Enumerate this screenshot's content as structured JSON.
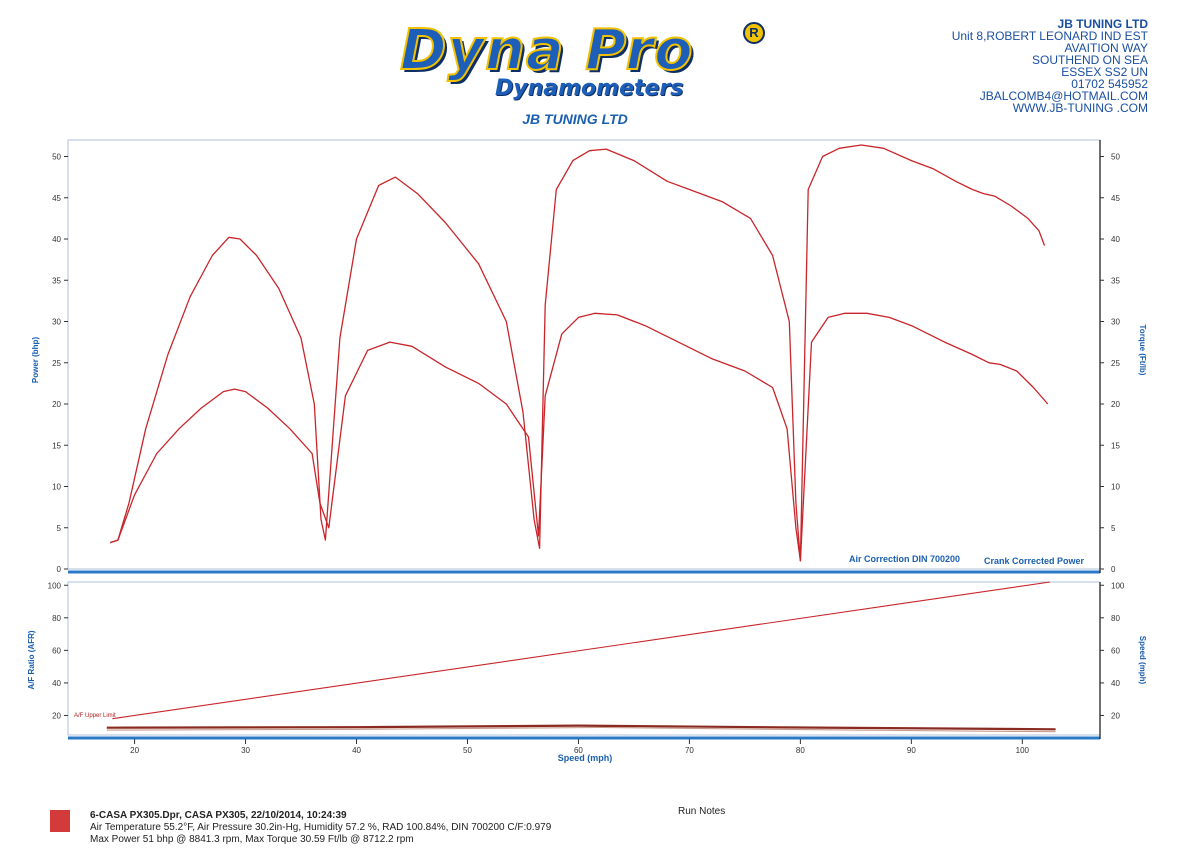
{
  "header": {
    "logo_main": "Dyna Pro",
    "logo_reg": "R",
    "logo_sub": "Dynamometers",
    "center_title": "JB TUNING LTD",
    "address": [
      "JB TUNING LTD",
      "Unit 8,ROBERT LEONARD IND EST",
      "AVAITION WAY",
      "SOUTHEND ON SEA",
      "ESSEX SS2 UN",
      "01702 545952",
      "JBALCOMB4@HOTMAIL.COM",
      "WWW.JB-TUNING .COM"
    ]
  },
  "chart_data": {
    "type": "line",
    "x_label": "Speed (mph)",
    "x_ticks": [
      20,
      30,
      40,
      50,
      60,
      70,
      80,
      90,
      100
    ],
    "xlim": [
      14,
      107
    ],
    "colors": {
      "curve": "#c8252a",
      "axis": "#2a78c8",
      "text": "#1a5fb0"
    },
    "top_panel": {
      "y_left_label": "Power (bhp)",
      "y_right_label": "Torque (Ft/lb)",
      "y_ticks": [
        0,
        5,
        10,
        15,
        20,
        25,
        30,
        35,
        40,
        45,
        50
      ],
      "ylim": [
        0,
        52
      ],
      "annotations": [
        "Air Correction DIN 700200",
        "Crank Corrected Power"
      ],
      "series": [
        {
          "curve": "a",
          "x": [
            17.8,
            18.5,
            19.5,
            21,
            23,
            25,
            27,
            28.5,
            29.5,
            31,
            33,
            35,
            36.2,
            36.8,
            37.2,
            38.5,
            40,
            42,
            43.5,
            45.5,
            48,
            51,
            53.5,
            55,
            56,
            56.5,
            57,
            58,
            59.5,
            61,
            62.5,
            65,
            68,
            70,
            73,
            75.5,
            77.5,
            79,
            79.6,
            80,
            80.7,
            82,
            83.5,
            85.5,
            87.5,
            90,
            92,
            94,
            95.5,
            96.5,
            97.5,
            99,
            100.5,
            101.5,
            102
          ],
          "y": [
            3.2,
            3.5,
            8,
            17,
            26,
            33,
            38,
            40.2,
            40,
            38,
            34,
            28,
            20,
            6,
            3.5,
            28,
            40,
            46.5,
            47.5,
            45.5,
            42,
            37,
            30,
            19,
            6,
            2.5,
            32,
            46,
            49.5,
            50.7,
            50.9,
            49.5,
            47,
            46,
            44.5,
            42.5,
            38,
            30,
            8,
            1,
            46,
            50,
            51,
            51.4,
            51,
            49.5,
            48.5,
            47,
            46,
            45.5,
            45.2,
            44,
            42.5,
            41,
            39.2
          ]
        },
        {
          "curve": "b",
          "x": [
            17.8,
            18.5,
            20,
            22,
            24,
            26,
            28,
            29,
            30,
            32,
            34,
            36,
            36.7,
            37.5,
            39,
            41,
            43,
            45,
            48,
            51,
            53.5,
            55.5,
            56.4,
            57,
            58.5,
            60,
            61.5,
            63.5,
            66,
            69,
            72,
            75,
            77.5,
            78.8,
            79.6,
            80,
            81,
            82.5,
            84,
            86,
            88,
            90,
            93,
            95.5,
            97,
            98,
            99.5,
            101,
            102.3
          ],
          "y": [
            3.2,
            3.5,
            9,
            14,
            17,
            19.5,
            21.5,
            21.8,
            21.5,
            19.5,
            17,
            14,
            8,
            5,
            21,
            26.5,
            27.5,
            27,
            24.5,
            22.5,
            20,
            16,
            4,
            21,
            28.5,
            30.5,
            31,
            30.8,
            29.5,
            27.5,
            25.5,
            24,
            22,
            17,
            5,
            1,
            27.5,
            30.5,
            31,
            31,
            30.5,
            29.5,
            27.5,
            26,
            25,
            24.8,
            24,
            22,
            20
          ]
        }
      ]
    },
    "bottom_panel": {
      "y_left_label": "A/F Ratio (AFR)",
      "y_right_label": "Speed (mph)",
      "y_left_ticks": [
        20,
        40,
        60,
        80,
        100
      ],
      "y_right_ticks": [
        20,
        40,
        60,
        80,
        100
      ],
      "ylim": [
        8,
        102
      ],
      "annotation": "A/F Upper Limit",
      "series": [
        {
          "curve": "speed",
          "x": [
            18,
            102.5
          ],
          "y": [
            18,
            102
          ]
        },
        {
          "curve": "afr-dark",
          "x": [
            17.5,
            40,
            60,
            80,
            103
          ],
          "y": [
            12.5,
            12.8,
            13.8,
            12.6,
            11.5
          ]
        },
        {
          "curve": "afr-light",
          "x": [
            17.5,
            40,
            62,
            85,
            103
          ],
          "y": [
            11,
            11.5,
            12.6,
            11,
            10
          ]
        }
      ]
    }
  },
  "footer": {
    "line1": "6-CASA PX305.Dpr,   CASA PX305,   22/10/2014,   10:24:39",
    "line2": "Air Temperature 55.2°F, Air Pressure 30.2in-Hg, Humidity 57.2 %, RAD 100.84%,   DIN 700200  C/F:0.979",
    "line3": "Max Power 51 bhp @ 8841.3 rpm, Max Torque 30.59 Ft/lb @ 8712.2 rpm",
    "run_notes": "Run Notes",
    "swatch_color": "#d33a3a"
  }
}
